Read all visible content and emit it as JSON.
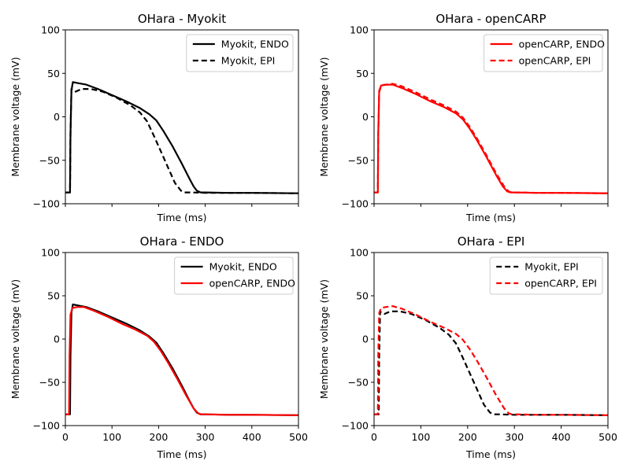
{
  "chart_data": [
    {
      "type": "line",
      "title": "OHara - Myokit",
      "xlabel": "Time (ms)",
      "ylabel": "Membrane voltage (mV)",
      "xlim": [
        0,
        500
      ],
      "ylim": [
        -100,
        100
      ],
      "xticks": [
        0,
        100,
        200,
        300,
        400,
        500
      ],
      "xtick_labels_visible": false,
      "yticks": [
        100,
        50,
        0,
        -50,
        -100
      ],
      "ytick_labels": [
        "100",
        "50",
        "0",
        "−50",
        "−100"
      ],
      "legend": "top-right",
      "series": [
        {
          "name": "Myokit, ENDO",
          "color": "#000000",
          "style": "solid",
          "x": [
            0,
            10,
            11,
            13,
            16,
            25,
            45,
            70,
            100,
            130,
            160,
            180,
            195,
            210,
            230,
            250,
            265,
            275,
            282,
            290,
            300,
            350,
            400,
            500
          ],
          "y": [
            -87,
            -87,
            -20,
            30,
            40,
            39,
            37,
            32,
            25,
            18,
            10,
            3,
            -4,
            -16,
            -34,
            -54,
            -70,
            -80,
            -85,
            -87,
            -87,
            -87.5,
            -87.5,
            -88
          ]
        },
        {
          "name": "Myokit, EPI",
          "color": "#000000",
          "style": "dashed",
          "x": [
            0,
            10,
            11,
            13,
            16,
            22,
            35,
            55,
            80,
            110,
            140,
            160,
            175,
            190,
            205,
            220,
            235,
            248,
            255,
            262,
            270,
            300,
            400,
            500
          ],
          "y": [
            -87,
            -87,
            -20,
            32,
            30,
            29,
            32,
            32,
            29,
            22,
            13,
            5,
            -5,
            -22,
            -40,
            -58,
            -76,
            -85,
            -87,
            -87,
            -87,
            -87.5,
            -87.5,
            -88
          ]
        }
      ]
    },
    {
      "type": "line",
      "title": "OHara - openCARP",
      "xlabel": "Time (ms)",
      "ylabel": "Membrane voltage (mV)",
      "xlim": [
        0,
        500
      ],
      "ylim": [
        -100,
        100
      ],
      "xticks": [
        0,
        100,
        200,
        300,
        400,
        500
      ],
      "xtick_labels_visible": false,
      "yticks": [
        100,
        50,
        0,
        -50,
        -100
      ],
      "ytick_labels": [
        "100",
        "50",
        "0",
        "−50",
        "−100"
      ],
      "legend": "top-right",
      "series": [
        {
          "name": "openCARP, ENDO",
          "color": "#ff0000",
          "style": "solid",
          "x": [
            0,
            8,
            9,
            11,
            15,
            25,
            40,
            60,
            90,
            120,
            150,
            175,
            190,
            205,
            220,
            240,
            260,
            275,
            285,
            292,
            300,
            350,
            400,
            500
          ],
          "y": [
            -87,
            -87,
            -20,
            28,
            36,
            37,
            37,
            33,
            26,
            18,
            11,
            4,
            -3,
            -14,
            -27,
            -46,
            -66,
            -80,
            -86,
            -87,
            -87,
            -87.5,
            -87.5,
            -88
          ]
        },
        {
          "name": "openCARP, EPI",
          "color": "#ff0000",
          "style": "dashed",
          "x": [
            0,
            8,
            9,
            11,
            15,
            25,
            40,
            60,
            90,
            120,
            150,
            175,
            190,
            205,
            220,
            240,
            260,
            278,
            288,
            295,
            305,
            350,
            400,
            500
          ],
          "y": [
            -87,
            -87,
            -20,
            30,
            36,
            37,
            38,
            35,
            28,
            20,
            13,
            6,
            -1,
            -12,
            -25,
            -44,
            -64,
            -80,
            -86,
            -87,
            -87,
            -87.5,
            -87.5,
            -88
          ]
        }
      ]
    },
    {
      "type": "line",
      "title": "OHara - ENDO",
      "xlabel": "Time (ms)",
      "ylabel": "Membrane voltage (mV)",
      "xlim": [
        0,
        500
      ],
      "ylim": [
        -100,
        100
      ],
      "xticks": [
        0,
        100,
        200,
        300,
        400,
        500
      ],
      "xtick_labels": [
        "0",
        "100",
        "200",
        "300",
        "400",
        "500"
      ],
      "xtick_labels_visible": true,
      "yticks": [
        100,
        50,
        0,
        -50,
        -100
      ],
      "ytick_labels": [
        "100",
        "50",
        "0",
        "−50",
        "−100"
      ],
      "legend": "top-right",
      "series": [
        {
          "name": "Myokit, ENDO",
          "color": "#000000",
          "style": "solid",
          "x": [
            0,
            10,
            11,
            13,
            16,
            25,
            45,
            70,
            100,
            130,
            160,
            180,
            195,
            210,
            230,
            250,
            265,
            275,
            282,
            290,
            300,
            350,
            400,
            500
          ],
          "y": [
            -87,
            -87,
            -20,
            30,
            40,
            39,
            37,
            32,
            25,
            18,
            10,
            3,
            -4,
            -16,
            -34,
            -54,
            -70,
            -80,
            -85,
            -87,
            -87,
            -87.5,
            -87.5,
            -88
          ]
        },
        {
          "name": "openCARP, ENDO",
          "color": "#ff0000",
          "style": "solid",
          "x": [
            0,
            8,
            9,
            11,
            15,
            25,
            40,
            60,
            90,
            120,
            150,
            175,
            190,
            205,
            220,
            240,
            260,
            275,
            285,
            292,
            300,
            350,
            400,
            500
          ],
          "y": [
            -87,
            -87,
            -20,
            28,
            36,
            37,
            37,
            33,
            26,
            18,
            11,
            4,
            -3,
            -14,
            -27,
            -46,
            -66,
            -80,
            -86,
            -87,
            -87,
            -87.5,
            -87.5,
            -88
          ]
        }
      ]
    },
    {
      "type": "line",
      "title": "OHara - EPI",
      "xlabel": "Time (ms)",
      "ylabel": "Membrane voltage (mV)",
      "xlim": [
        0,
        500
      ],
      "ylim": [
        -100,
        100
      ],
      "xticks": [
        0,
        100,
        200,
        300,
        400,
        500
      ],
      "xtick_labels": [
        "0",
        "100",
        "200",
        "300",
        "400",
        "500"
      ],
      "xtick_labels_visible": true,
      "yticks": [
        100,
        50,
        0,
        -50,
        -100
      ],
      "ytick_labels": [
        "100",
        "50",
        "0",
        "−50",
        "−100"
      ],
      "legend": "top-right",
      "series": [
        {
          "name": "Myokit, EPI",
          "color": "#000000",
          "style": "dashed",
          "x": [
            0,
            10,
            11,
            13,
            16,
            22,
            35,
            55,
            80,
            110,
            140,
            160,
            175,
            190,
            205,
            220,
            235,
            248,
            255,
            262,
            270,
            300,
            400,
            500
          ],
          "y": [
            -87,
            -87,
            -20,
            32,
            30,
            29,
            32,
            32,
            29,
            22,
            13,
            5,
            -5,
            -22,
            -40,
            -58,
            -76,
            -85,
            -87,
            -87,
            -87,
            -87.5,
            -87.5,
            -88
          ]
        },
        {
          "name": "openCARP, EPI",
          "color": "#ff0000",
          "style": "dashed",
          "x": [
            0,
            8,
            9,
            11,
            15,
            25,
            40,
            60,
            90,
            120,
            150,
            175,
            190,
            205,
            220,
            240,
            260,
            278,
            288,
            295,
            305,
            350,
            400,
            500
          ],
          "y": [
            -87,
            -87,
            -20,
            30,
            36,
            37,
            38,
            35,
            28,
            20,
            13,
            6,
            -1,
            -12,
            -25,
            -44,
            -64,
            -80,
            -86,
            -87,
            -87,
            -87.5,
            -87.5,
            -88
          ]
        }
      ]
    }
  ]
}
